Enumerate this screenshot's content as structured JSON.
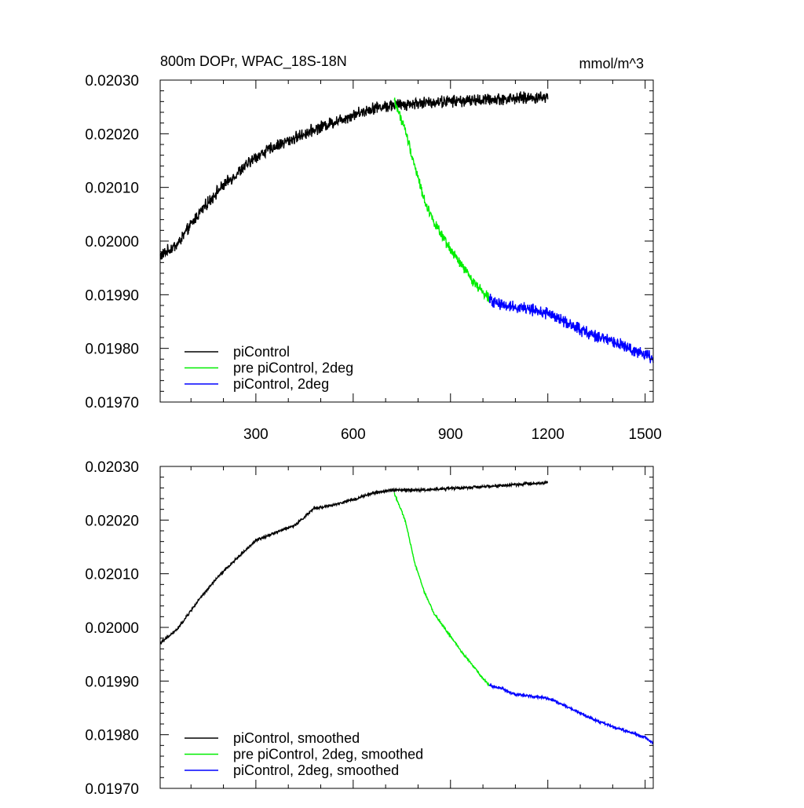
{
  "colors": {
    "piControl": "#000000",
    "pre": "#00ee00",
    "twodeg": "#0000ff",
    "frame": "#000000"
  },
  "chart_data": [
    {
      "type": "line",
      "title": "800m DOPr, WPAC_18S-18N",
      "units": "mmol/m^3",
      "xlim": [
        5,
        1525
      ],
      "ylim": [
        0.0197,
        0.0203
      ],
      "yticks": [
        "0.02030",
        "0.02020",
        "0.02010",
        "0.02000",
        "0.01990",
        "0.01980",
        "0.01970"
      ],
      "xticks": [
        "300",
        "600",
        "900",
        "1200",
        "1500"
      ],
      "legend_position": "bottom-left",
      "series": [
        {
          "name": "piControl",
          "color": "#000000",
          "x_range": [
            5,
            1200
          ],
          "noise": 1.1e-05,
          "anchors": [
            [
              5,
              0.019972
            ],
            [
              60,
              0.019995
            ],
            [
              120,
              0.020048
            ],
            [
              180,
              0.020092
            ],
            [
              240,
              0.020125
            ],
            [
              300,
              0.020157
            ],
            [
              360,
              0.020177
            ],
            [
              420,
              0.020192
            ],
            [
              480,
              0.020208
            ],
            [
              540,
              0.020222
            ],
            [
              600,
              0.020235
            ],
            [
              660,
              0.020248
            ],
            [
              720,
              0.020253
            ],
            [
              800,
              0.020257
            ],
            [
              900,
              0.020261
            ],
            [
              1000,
              0.020263
            ],
            [
              1100,
              0.020266
            ],
            [
              1200,
              0.020268
            ]
          ]
        },
        {
          "name": "pre piControl, 2deg",
          "color": "#00ee00",
          "x_range": [
            727,
            1020
          ],
          "noise": 9e-06,
          "anchors": [
            [
              727,
              0.020262
            ],
            [
              760,
              0.020208
            ],
            [
              790,
              0.02014
            ],
            [
              820,
              0.020075
            ],
            [
              850,
              0.020035
            ],
            [
              880,
              0.020002
            ],
            [
              910,
              0.019975
            ],
            [
              940,
              0.01995
            ],
            [
              970,
              0.019925
            ],
            [
              1000,
              0.019905
            ],
            [
              1020,
              0.019895
            ]
          ]
        },
        {
          "name": "piControl, 2deg",
          "color": "#0000ff",
          "x_range": [
            1020,
            1525
          ],
          "noise": 1.1e-05,
          "anchors": [
            [
              1020,
              0.01989
            ],
            [
              1060,
              0.019882
            ],
            [
              1100,
              0.019878
            ],
            [
              1150,
              0.019872
            ],
            [
              1200,
              0.019865
            ],
            [
              1250,
              0.01985
            ],
            [
              1300,
              0.019835
            ],
            [
              1350,
              0.019822
            ],
            [
              1400,
              0.019812
            ],
            [
              1450,
              0.0198
            ],
            [
              1500,
              0.019788
            ],
            [
              1525,
              0.019782
            ]
          ]
        }
      ]
    },
    {
      "type": "line",
      "title": "",
      "xlim": [
        5,
        1525
      ],
      "ylim": [
        0.0197,
        0.0203
      ],
      "yticks": [
        "0.02030",
        "0.02020",
        "0.02010",
        "0.02000",
        "0.01990",
        "0.01980",
        "0.01970"
      ],
      "legend_position": "bottom-left",
      "series": [
        {
          "name": "piControl, smoothed",
          "color": "#000000",
          "x_range": [
            5,
            1200
          ],
          "noise": 2.5e-06,
          "anchors": [
            [
              5,
              0.01997
            ],
            [
              60,
              0.019998
            ],
            [
              120,
              0.020048
            ],
            [
              180,
              0.020092
            ],
            [
              240,
              0.020128
            ],
            [
              300,
              0.020162
            ],
            [
              360,
              0.020177
            ],
            [
              420,
              0.02019
            ],
            [
              480,
              0.020222
            ],
            [
              540,
              0.020228
            ],
            [
              600,
              0.020238
            ],
            [
              660,
              0.02025
            ],
            [
              720,
              0.020256
            ],
            [
              800,
              0.020256
            ],
            [
              900,
              0.020259
            ],
            [
              1000,
              0.020262
            ],
            [
              1100,
              0.020266
            ],
            [
              1200,
              0.02027
            ]
          ]
        },
        {
          "name": "pre piControl, 2deg, smoothed",
          "color": "#00ee00",
          "x_range": [
            727,
            1020
          ],
          "noise": 2e-06,
          "anchors": [
            [
              727,
              0.02025
            ],
            [
              760,
              0.0202
            ],
            [
              790,
              0.02012
            ],
            [
              820,
              0.020065
            ],
            [
              850,
              0.020025
            ],
            [
              880,
              0.02
            ],
            [
              910,
              0.019975
            ],
            [
              940,
              0.01995
            ],
            [
              970,
              0.019928
            ],
            [
              1000,
              0.019905
            ],
            [
              1020,
              0.019892
            ]
          ]
        },
        {
          "name": "piControl, 2deg, smoothed",
          "color": "#0000ff",
          "x_range": [
            1020,
            1525
          ],
          "noise": 2.5e-06,
          "anchors": [
            [
              1020,
              0.019892
            ],
            [
              1060,
              0.019886
            ],
            [
              1100,
              0.019875
            ],
            [
              1150,
              0.019872
            ],
            [
              1200,
              0.019868
            ],
            [
              1250,
              0.019855
            ],
            [
              1300,
              0.01984
            ],
            [
              1350,
              0.019826
            ],
            [
              1400,
              0.019815
            ],
            [
              1450,
              0.019805
            ],
            [
              1500,
              0.019795
            ],
            [
              1525,
              0.019785
            ]
          ]
        }
      ]
    }
  ]
}
